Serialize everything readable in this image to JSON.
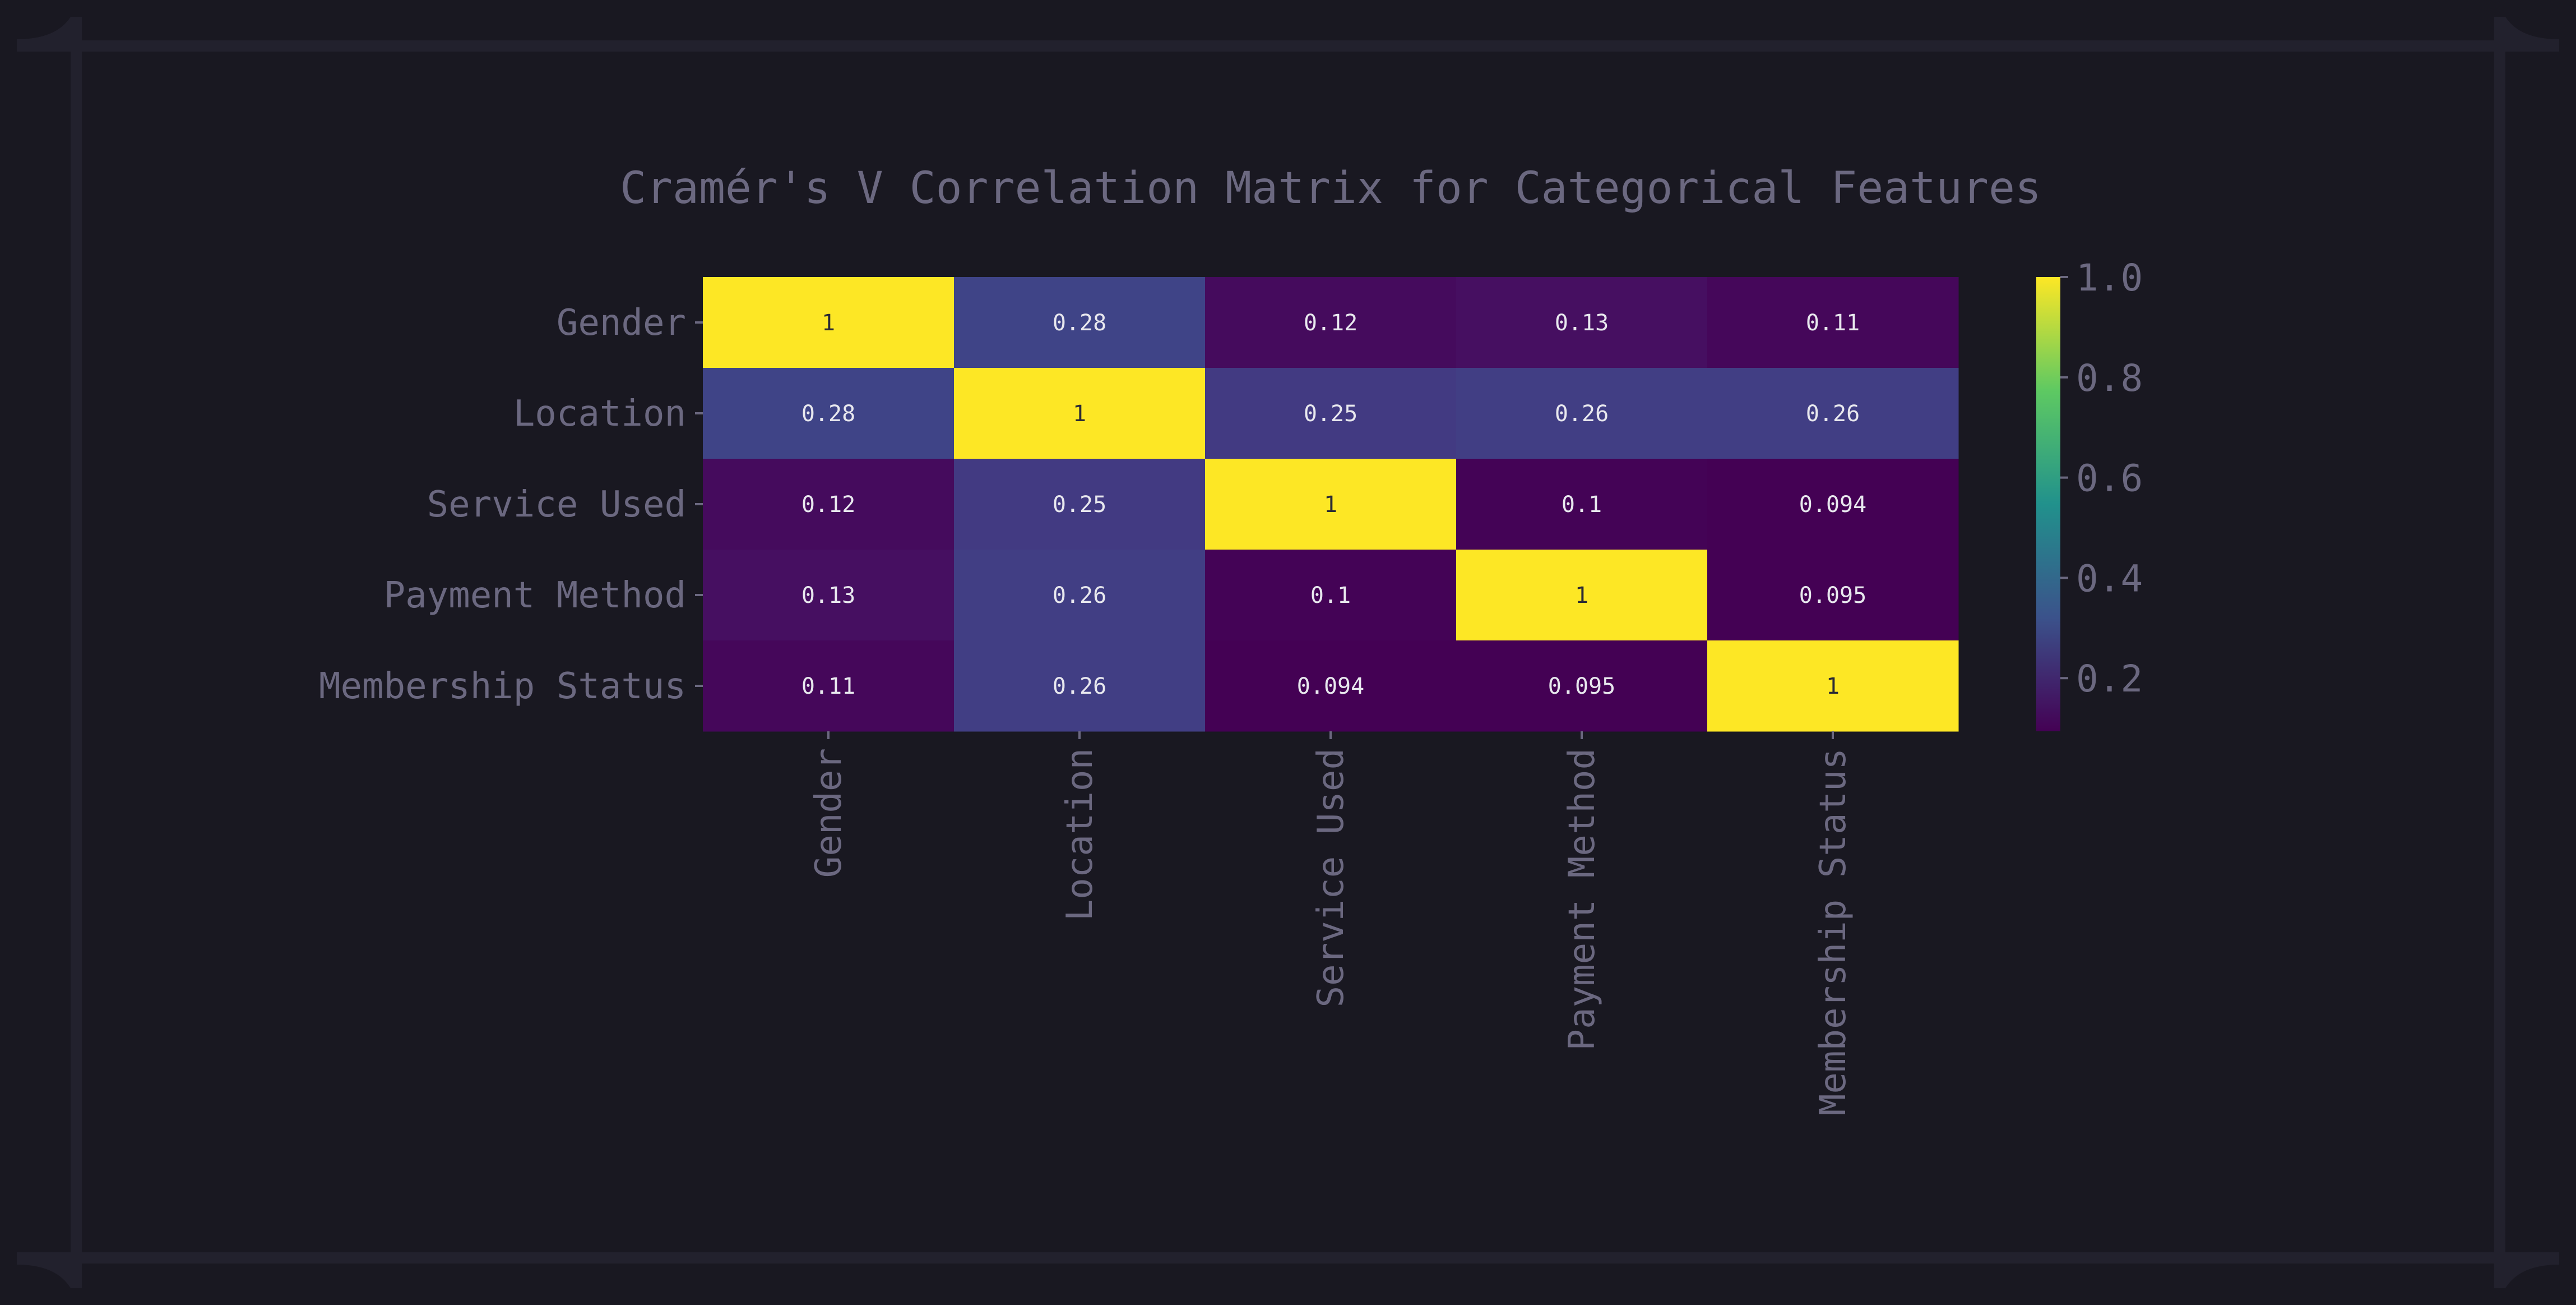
{
  "chart_data": {
    "type": "heatmap",
    "title": "Cramér's V Correlation Matrix for Categorical Features",
    "rows": [
      "Gender",
      "Location",
      "Service Used",
      "Payment Method",
      "Membership Status"
    ],
    "columns": [
      "Gender",
      "Location",
      "Service Used",
      "Payment Method",
      "Membership Status"
    ],
    "values": [
      [
        1,
        0.28,
        0.12,
        0.13,
        0.11
      ],
      [
        0.28,
        1,
        0.25,
        0.26,
        0.26
      ],
      [
        0.12,
        0.25,
        1,
        0.1,
        0.094
      ],
      [
        0.13,
        0.26,
        0.1,
        1,
        0.095
      ],
      [
        0.11,
        0.26,
        0.094,
        0.095,
        1
      ]
    ],
    "value_labels": [
      [
        "1",
        "0.28",
        "0.12",
        "0.13",
        "0.11"
      ],
      [
        "0.28",
        "1",
        "0.25",
        "0.26",
        "0.26"
      ],
      [
        "0.12",
        "0.25",
        "1",
        "0.1",
        "0.094"
      ],
      [
        "0.13",
        "0.26",
        "0.1",
        "1",
        "0.095"
      ],
      [
        "0.11",
        "0.26",
        "0.094",
        "0.095",
        "1"
      ]
    ],
    "colormap": "viridis",
    "colorbar": {
      "range": [
        0.094,
        1.0
      ],
      "ticks": [
        0.2,
        0.4,
        0.6,
        0.8,
        1.0
      ],
      "tick_labels": [
        "0.2",
        "0.4",
        "0.6",
        "0.8",
        "1.0"
      ],
      "position": "right"
    },
    "xlabel": "",
    "ylabel": "",
    "grid": false
  },
  "colors": {
    "background": "#191821",
    "frame": "#24232f",
    "text": "#6b6880",
    "cell_text_dark": "#e8e8ee",
    "cell_text_light": "#2a2a35"
  }
}
